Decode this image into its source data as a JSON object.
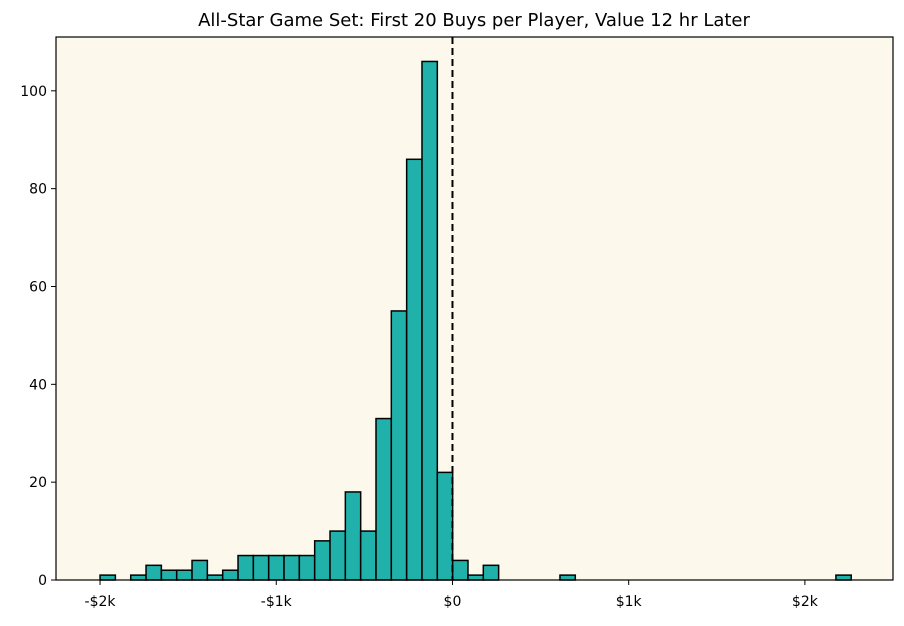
{
  "chart_data": {
    "type": "bar",
    "title": "All-Star Game Set: First 20 Buys per Player, Value 12 hr Later",
    "xlabel": "",
    "ylabel": "",
    "xlim": [
      -2250,
      2500
    ],
    "ylim": [
      0,
      111
    ],
    "bin_width": 87,
    "bins": [
      {
        "x": -2000,
        "value": 1
      },
      {
        "x": -1913,
        "value": 0
      },
      {
        "x": -1826,
        "value": 1
      },
      {
        "x": -1739,
        "value": 3
      },
      {
        "x": -1652,
        "value": 2
      },
      {
        "x": -1565,
        "value": 2
      },
      {
        "x": -1478,
        "value": 4
      },
      {
        "x": -1391,
        "value": 1
      },
      {
        "x": -1304,
        "value": 2
      },
      {
        "x": -1217,
        "value": 5
      },
      {
        "x": -1130,
        "value": 5
      },
      {
        "x": -1043,
        "value": 5
      },
      {
        "x": -956,
        "value": 5
      },
      {
        "x": -869,
        "value": 5
      },
      {
        "x": -782,
        "value": 8
      },
      {
        "x": -695,
        "value": 10
      },
      {
        "x": -608,
        "value": 18
      },
      {
        "x": -521,
        "value": 10
      },
      {
        "x": -434,
        "value": 33
      },
      {
        "x": -347,
        "value": 55
      },
      {
        "x": -260,
        "value": 86
      },
      {
        "x": -173,
        "value": 106
      },
      {
        "x": -86,
        "value": 22
      },
      {
        "x": 1,
        "value": 4
      },
      {
        "x": 88,
        "value": 1
      },
      {
        "x": 175,
        "value": 3
      },
      {
        "x": 262,
        "value": 0
      },
      {
        "x": 349,
        "value": 0
      },
      {
        "x": 436,
        "value": 0
      },
      {
        "x": 523,
        "value": 0
      },
      {
        "x": 610,
        "value": 1
      },
      {
        "x": 697,
        "value": 0
      },
      {
        "x": 784,
        "value": 0
      },
      {
        "x": 871,
        "value": 0
      },
      {
        "x": 958,
        "value": 0
      },
      {
        "x": 1045,
        "value": 0
      },
      {
        "x": 1132,
        "value": 0
      },
      {
        "x": 1219,
        "value": 0
      },
      {
        "x": 1306,
        "value": 0
      },
      {
        "x": 1393,
        "value": 0
      },
      {
        "x": 1480,
        "value": 0
      },
      {
        "x": 1567,
        "value": 0
      },
      {
        "x": 1654,
        "value": 0
      },
      {
        "x": 1741,
        "value": 0
      },
      {
        "x": 1828,
        "value": 0
      },
      {
        "x": 1915,
        "value": 0
      },
      {
        "x": 2002,
        "value": 0
      },
      {
        "x": 2089,
        "value": 0
      },
      {
        "x": 2176,
        "value": 1
      }
    ],
    "x_ticks": [
      {
        "value": -2000,
        "label": "-$2k"
      },
      {
        "value": -1000,
        "label": "-$1k"
      },
      {
        "value": 0,
        "label": "$0"
      },
      {
        "value": 1000,
        "label": "$1k"
      },
      {
        "value": 2000,
        "label": "$2k"
      }
    ],
    "y_ticks": [
      {
        "value": 0,
        "label": "0"
      },
      {
        "value": 20,
        "label": "20"
      },
      {
        "value": 40,
        "label": "40"
      },
      {
        "value": 60,
        "label": "60"
      },
      {
        "value": 80,
        "label": "80"
      },
      {
        "value": 100,
        "label": "100"
      }
    ],
    "reference_line": {
      "x": 0,
      "style": "dashed"
    },
    "grid": false,
    "colors": {
      "bar_fill": "#20b2aa",
      "bar_edge": "#000000",
      "plot_background": "#fdf8ec",
      "reference_line": "#000000"
    }
  }
}
